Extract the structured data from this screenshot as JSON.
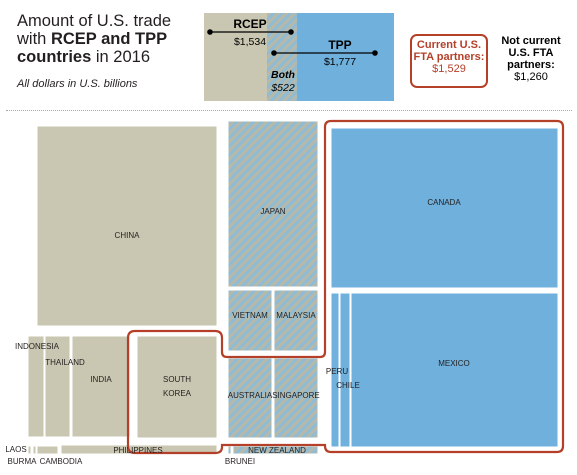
{
  "title": {
    "line1": "Amount of U.S. trade",
    "line2_prefix": "with ",
    "line2_bold": "RCEP and TPP",
    "line3_bold": "countries",
    "line3_suffix": " in 2016"
  },
  "subtitle": "All dollars in U.S. billions",
  "colors": {
    "rcep": "#c9c7b1",
    "tpp": "#6fb0dc",
    "both_a": "#b6b9a9",
    "both_b": "#8fbcd4",
    "fta_outline": "#b5402a"
  },
  "legend": {
    "rcep_label": "RCEP",
    "rcep_value": "$1,534",
    "tpp_label": "TPP",
    "tpp_value": "$1,777",
    "both_label": "Both",
    "both_value": "$522"
  },
  "fta_partners": {
    "label": "Current U.S. FTA partners:",
    "value": "$1,529"
  },
  "not_fta": {
    "label": "Not current U.S. FTA partners:",
    "value": "$1,260"
  },
  "chart_data": {
    "type": "treemap",
    "title": "Amount of U.S. trade with RCEP and TPP countries in 2016",
    "unit": "U.S. dollars, billions",
    "totals": {
      "RCEP": 1534,
      "TPP": 1777,
      "Both": 522,
      "Current U.S. FTA partners": 1529,
      "Not current U.S. FTA partners": 1260
    },
    "groups": [
      "RCEP only",
      "Both",
      "TPP only"
    ],
    "countries": [
      {
        "name": "CHINA",
        "group": "RCEP only",
        "fta": false
      },
      {
        "name": "INDONESIA",
        "group": "RCEP only",
        "fta": false
      },
      {
        "name": "THAILAND",
        "group": "RCEP only",
        "fta": false
      },
      {
        "name": "INDIA",
        "group": "RCEP only",
        "fta": false
      },
      {
        "name": "SOUTH KOREA",
        "group": "RCEP only",
        "fta": true
      },
      {
        "name": "PHILIPPINES",
        "group": "RCEP only",
        "fta": false
      },
      {
        "name": "LAOS",
        "group": "RCEP only",
        "fta": false
      },
      {
        "name": "BURMA",
        "group": "RCEP only",
        "fta": false
      },
      {
        "name": "CAMBODIA",
        "group": "RCEP only",
        "fta": false
      },
      {
        "name": "JAPAN",
        "group": "Both",
        "fta": false
      },
      {
        "name": "VIETNAM",
        "group": "Both",
        "fta": false
      },
      {
        "name": "MALAYSIA",
        "group": "Both",
        "fta": false
      },
      {
        "name": "AUSTRALIA",
        "group": "Both",
        "fta": true
      },
      {
        "name": "SINGAPORE",
        "group": "Both",
        "fta": true
      },
      {
        "name": "NEW ZEALAND",
        "group": "Both",
        "fta": false
      },
      {
        "name": "BRUNEI",
        "group": "Both",
        "fta": false
      },
      {
        "name": "CANADA",
        "group": "TPP only",
        "fta": true
      },
      {
        "name": "MEXICO",
        "group": "TPP only",
        "fta": true
      },
      {
        "name": "PERU",
        "group": "TPP only",
        "fta": true
      },
      {
        "name": "CHILE",
        "group": "TPP only",
        "fta": true
      }
    ]
  }
}
